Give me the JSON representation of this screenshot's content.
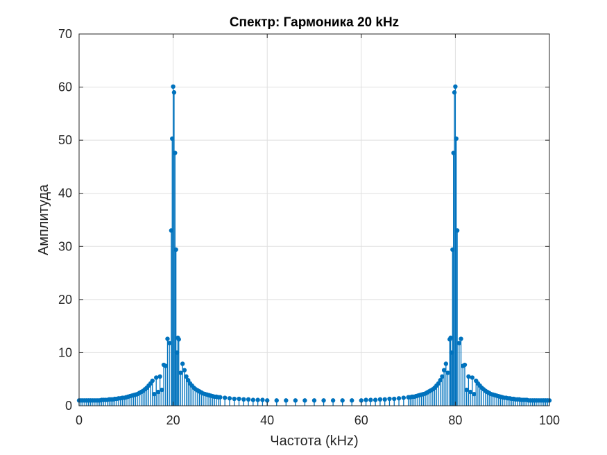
{
  "chart_data": {
    "type": "stem",
    "title": "Спектр: Гармоника 20 kHz",
    "xlabel": "Частота (kHz)",
    "ylabel": "Амплитуда",
    "xlim": [
      0,
      100
    ],
    "ylim": [
      0,
      70
    ],
    "xticks": [
      0,
      20,
      40,
      60,
      80,
      100
    ],
    "yticks": [
      0,
      10,
      20,
      30,
      40,
      50,
      60,
      70
    ],
    "xtick_labels": [
      "0",
      "20",
      "40",
      "60",
      "80",
      "100"
    ],
    "ytick_labels": [
      "0",
      "10",
      "20",
      "30",
      "40",
      "50",
      "60",
      "70"
    ],
    "grid": true,
    "color": "#0072BD",
    "series": [
      {
        "values": [
          [
            0,
            1.0
          ],
          [
            0.4,
            1.0
          ],
          [
            0.8,
            1.0
          ],
          [
            1.2,
            1.0
          ],
          [
            1.6,
            1.0
          ],
          [
            2.0,
            1.0
          ],
          [
            2.4,
            1.0
          ],
          [
            2.8,
            1.0
          ],
          [
            3.2,
            1.0
          ],
          [
            3.6,
            1.0
          ],
          [
            4.0,
            1.0
          ],
          [
            4.4,
            1.0
          ],
          [
            4.8,
            1.1
          ],
          [
            5.2,
            1.1
          ],
          [
            5.6,
            1.1
          ],
          [
            6.0,
            1.1
          ],
          [
            6.4,
            1.2
          ],
          [
            6.8,
            1.2
          ],
          [
            7.2,
            1.2
          ],
          [
            7.6,
            1.3
          ],
          [
            8.0,
            1.3
          ],
          [
            8.4,
            1.4
          ],
          [
            8.8,
            1.4
          ],
          [
            9.2,
            1.5
          ],
          [
            9.6,
            1.5
          ],
          [
            10.0,
            1.6
          ],
          [
            10.4,
            1.7
          ],
          [
            10.8,
            1.8
          ],
          [
            11.2,
            1.9
          ],
          [
            11.6,
            2.0
          ],
          [
            12.0,
            2.1
          ],
          [
            12.4,
            2.2
          ],
          [
            12.8,
            2.4
          ],
          [
            13.2,
            2.6
          ],
          [
            13.6,
            2.8
          ],
          [
            14.0,
            3.1
          ],
          [
            14.4,
            3.4
          ],
          [
            14.8,
            3.8
          ],
          [
            15.2,
            4.2
          ],
          [
            15.6,
            4.7
          ],
          [
            16.0,
            2.2
          ],
          [
            16.4,
            5.3
          ],
          [
            16.8,
            2.6
          ],
          [
            17.2,
            5.5
          ],
          [
            17.6,
            3.0
          ],
          [
            18.0,
            7.7
          ],
          [
            18.4,
            7.5
          ],
          [
            18.8,
            12.6
          ],
          [
            19.2,
            11.8
          ],
          [
            19.6,
            33.0
          ],
          [
            19.8,
            50.3
          ],
          [
            20.0,
            60.1
          ],
          [
            20.2,
            59.0
          ],
          [
            20.4,
            47.6
          ],
          [
            20.6,
            29.4
          ],
          [
            20.8,
            10.0
          ],
          [
            21.0,
            12.8
          ],
          [
            21.2,
            12.5
          ],
          [
            21.6,
            6.2
          ],
          [
            22.0,
            7.9
          ],
          [
            22.4,
            6.7
          ],
          [
            22.8,
            5.5
          ],
          [
            23.2,
            4.8
          ],
          [
            23.6,
            4.2
          ],
          [
            24.0,
            3.8
          ],
          [
            24.4,
            3.4
          ],
          [
            24.8,
            3.1
          ],
          [
            25.2,
            2.9
          ],
          [
            25.6,
            2.7
          ],
          [
            26.0,
            2.5
          ],
          [
            26.4,
            2.3
          ],
          [
            26.8,
            2.2
          ],
          [
            27.2,
            2.1
          ],
          [
            27.6,
            2.0
          ],
          [
            28.0,
            1.9
          ],
          [
            28.4,
            1.8
          ],
          [
            28.8,
            1.7
          ],
          [
            29.2,
            1.7
          ],
          [
            29.6,
            1.6
          ],
          [
            30.0,
            1.6
          ],
          [
            31.0,
            1.5
          ],
          [
            32.0,
            1.4
          ],
          [
            33.0,
            1.3
          ],
          [
            34.0,
            1.3
          ],
          [
            35.0,
            1.2
          ],
          [
            36.0,
            1.2
          ],
          [
            37.0,
            1.1
          ],
          [
            38.0,
            1.1
          ],
          [
            39.0,
            1.1
          ],
          [
            40.0,
            1.0
          ],
          [
            42.0,
            1.0
          ],
          [
            44.0,
            1.0
          ],
          [
            46.0,
            1.0
          ],
          [
            48.0,
            1.0
          ],
          [
            50.0,
            1.0
          ],
          [
            52.0,
            1.0
          ],
          [
            54.0,
            1.0
          ],
          [
            56.0,
            1.0
          ],
          [
            58.0,
            1.0
          ],
          [
            60.0,
            1.0
          ],
          [
            61.0,
            1.1
          ],
          [
            62.0,
            1.1
          ],
          [
            63.0,
            1.1
          ],
          [
            64.0,
            1.2
          ],
          [
            65.0,
            1.2
          ],
          [
            66.0,
            1.3
          ],
          [
            67.0,
            1.3
          ],
          [
            68.0,
            1.4
          ],
          [
            69.0,
            1.5
          ],
          [
            70.0,
            1.6
          ],
          [
            70.4,
            1.6
          ],
          [
            70.8,
            1.7
          ],
          [
            71.2,
            1.7
          ],
          [
            71.6,
            1.8
          ],
          [
            72.0,
            1.9
          ],
          [
            72.4,
            2.0
          ],
          [
            72.8,
            2.1
          ],
          [
            73.2,
            2.2
          ],
          [
            73.6,
            2.3
          ],
          [
            74.0,
            2.5
          ],
          [
            74.4,
            2.7
          ],
          [
            74.8,
            2.9
          ],
          [
            75.2,
            3.1
          ],
          [
            75.6,
            3.4
          ],
          [
            76.0,
            3.8
          ],
          [
            76.4,
            4.2
          ],
          [
            76.8,
            4.8
          ],
          [
            77.2,
            5.5
          ],
          [
            77.6,
            6.7
          ],
          [
            78.0,
            7.9
          ],
          [
            78.4,
            6.2
          ],
          [
            78.8,
            12.5
          ],
          [
            79.0,
            12.8
          ],
          [
            79.2,
            10.0
          ],
          [
            79.4,
            29.4
          ],
          [
            79.6,
            47.6
          ],
          [
            79.8,
            59.0
          ],
          [
            80.0,
            60.1
          ],
          [
            80.2,
            50.3
          ],
          [
            80.4,
            33.0
          ],
          [
            80.8,
            11.8
          ],
          [
            81.2,
            12.6
          ],
          [
            81.6,
            7.5
          ],
          [
            82.0,
            7.7
          ],
          [
            82.4,
            3.0
          ],
          [
            82.8,
            5.5
          ],
          [
            83.2,
            2.6
          ],
          [
            83.6,
            5.3
          ],
          [
            84.0,
            2.2
          ],
          [
            84.4,
            4.7
          ],
          [
            84.8,
            4.2
          ],
          [
            85.2,
            3.8
          ],
          [
            85.6,
            3.4
          ],
          [
            86.0,
            3.1
          ],
          [
            86.4,
            2.8
          ],
          [
            86.8,
            2.6
          ],
          [
            87.2,
            2.4
          ],
          [
            87.6,
            2.2
          ],
          [
            88.0,
            2.1
          ],
          [
            88.4,
            2.0
          ],
          [
            88.8,
            1.9
          ],
          [
            89.2,
            1.8
          ],
          [
            89.6,
            1.7
          ],
          [
            90.0,
            1.6
          ],
          [
            90.4,
            1.5
          ],
          [
            90.8,
            1.5
          ],
          [
            91.2,
            1.4
          ],
          [
            91.6,
            1.4
          ],
          [
            92.0,
            1.3
          ],
          [
            92.4,
            1.3
          ],
          [
            92.8,
            1.2
          ],
          [
            93.2,
            1.2
          ],
          [
            93.6,
            1.2
          ],
          [
            94.0,
            1.1
          ],
          [
            94.4,
            1.1
          ],
          [
            94.8,
            1.1
          ],
          [
            95.2,
            1.1
          ],
          [
            95.6,
            1.0
          ],
          [
            96.0,
            1.0
          ],
          [
            96.4,
            1.0
          ],
          [
            96.8,
            1.0
          ],
          [
            97.2,
            1.0
          ],
          [
            97.6,
            1.0
          ],
          [
            98.0,
            1.0
          ],
          [
            98.4,
            1.0
          ],
          [
            98.8,
            1.0
          ],
          [
            99.2,
            1.0
          ],
          [
            99.6,
            1.0
          ],
          [
            100.0,
            1.0
          ]
        ]
      }
    ]
  }
}
